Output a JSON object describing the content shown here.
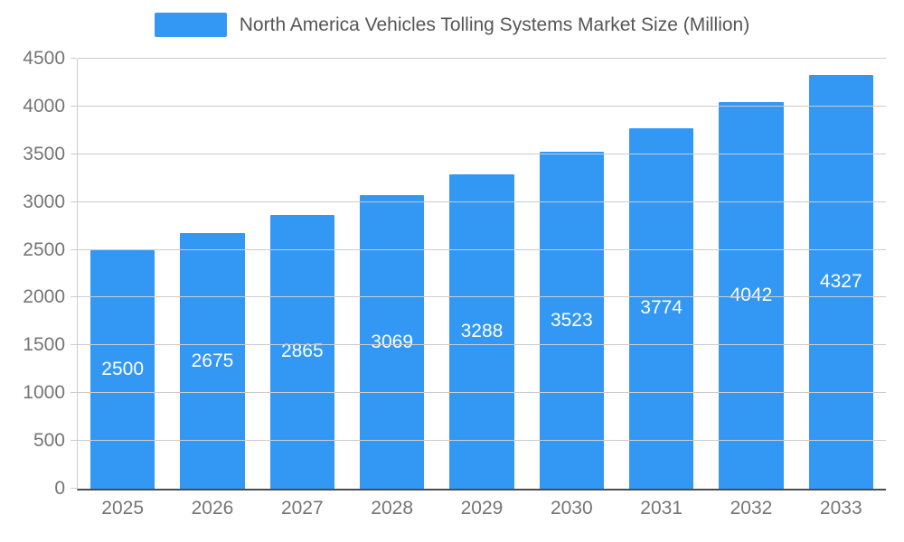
{
  "chart_data": {
    "type": "bar",
    "title": "North America Vehicles Tolling Systems Market Size (Million)",
    "categories": [
      "2025",
      "2026",
      "2027",
      "2028",
      "2029",
      "2030",
      "2031",
      "2032",
      "2033"
    ],
    "values": [
      2500,
      2675,
      2865,
      3069,
      3288,
      3523,
      3774,
      4042,
      4327
    ],
    "xlabel": "",
    "ylabel": "",
    "ylim": [
      0,
      4500
    ],
    "ytick_step": 500,
    "grid": true,
    "legend_position": "top",
    "bar_color": "#3398f4",
    "grid_color": "#cccccc",
    "axis_text_color": "#757575",
    "title_color": "#565656",
    "value_label_color": "#ffffff"
  }
}
